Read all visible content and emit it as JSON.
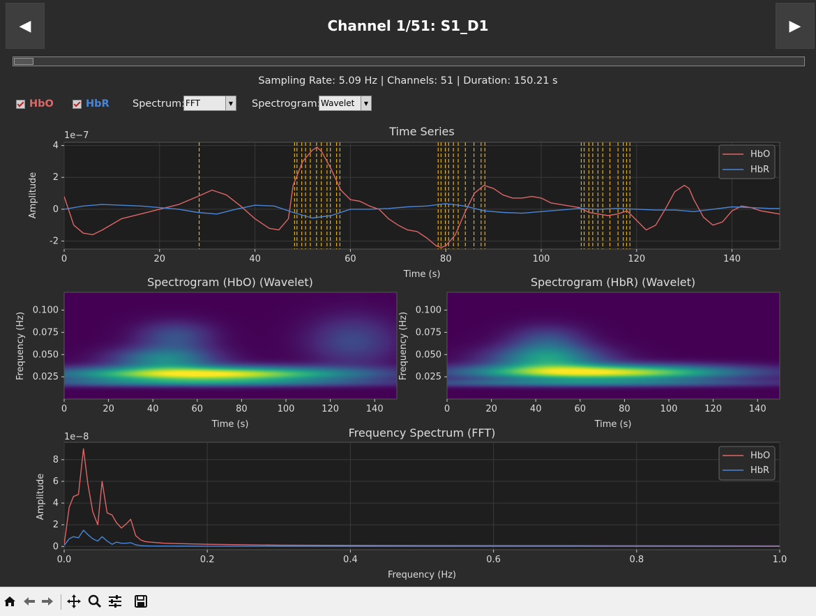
{
  "header": {
    "title": "Channel 1/51: S1_D1",
    "prev_label": "◀",
    "next_label": "▶",
    "info": "Sampling Rate: 5.09 Hz  |  Channels: 51  |  Duration: 150.21 s"
  },
  "controls": {
    "hbo_label": "HbO",
    "hbr_label": "HbR",
    "spectrum_label": "Spectrum:",
    "spectrum_value": "FFT",
    "spectrogram_label": "Spectrogram:",
    "spectrogram_value": "Wavelet"
  },
  "colors": {
    "hbo": "#e06666",
    "hbr": "#4a86d8",
    "marker": "#e0b020",
    "background": "#2b2b2b",
    "axes": "#1e1e1e"
  },
  "chart_data": [
    {
      "type": "line",
      "title": "Time Series",
      "xlabel": "Time (s)",
      "ylabel": "Amplitude",
      "y_offset_text": "1e−7",
      "xlim": [
        0,
        150
      ],
      "ylim": [
        -2.5,
        4.2
      ],
      "xticks": [
        0,
        20,
        40,
        60,
        80,
        100,
        120,
        140
      ],
      "yticks": [
        -2,
        0,
        2,
        4
      ],
      "legend_position": "top-right",
      "series": [
        {
          "name": "HbO",
          "x": [
            0,
            2,
            4,
            6,
            8,
            12,
            16,
            20,
            24,
            28,
            31,
            34,
            37,
            40,
            43,
            45,
            47,
            48,
            50,
            52,
            53,
            54,
            56,
            58,
            60,
            62,
            64,
            66,
            68,
            70,
            72,
            74,
            76,
            78,
            79,
            80,
            82,
            84,
            86,
            88,
            90,
            92,
            94,
            96,
            98,
            100,
            102,
            104,
            106,
            108,
            110,
            112,
            114,
            116,
            118,
            120,
            122,
            124,
            126,
            128,
            130,
            131,
            132,
            134,
            136,
            138,
            140,
            142,
            144,
            146,
            148,
            150
          ],
          "y": [
            0.8,
            -1.0,
            -1.5,
            -1.6,
            -1.3,
            -0.6,
            -0.3,
            0.0,
            0.3,
            0.8,
            1.2,
            0.9,
            0.2,
            -0.6,
            -1.2,
            -1.3,
            -0.6,
            1.5,
            3.0,
            3.7,
            3.9,
            3.6,
            2.5,
            1.2,
            0.6,
            0.5,
            0.2,
            0.0,
            -0.6,
            -1.0,
            -1.3,
            -1.4,
            -1.8,
            -2.3,
            -2.4,
            -2.3,
            -1.6,
            -0.2,
            1.0,
            1.5,
            1.3,
            0.9,
            0.7,
            0.7,
            0.8,
            0.7,
            0.4,
            0.3,
            0.2,
            0.1,
            -0.2,
            -0.3,
            -0.4,
            -0.3,
            -0.1,
            -0.7,
            -1.3,
            -1.0,
            0.0,
            1.1,
            1.5,
            1.3,
            0.6,
            -0.5,
            -1.0,
            -0.8,
            -0.1,
            0.2,
            0.1,
            -0.1,
            -0.2,
            -0.3
          ]
        },
        {
          "name": "HbR",
          "x": [
            0,
            4,
            8,
            12,
            16,
            20,
            24,
            28,
            32,
            36,
            40,
            44,
            48,
            52,
            56,
            60,
            64,
            68,
            72,
            76,
            80,
            84,
            88,
            92,
            96,
            100,
            104,
            108,
            112,
            116,
            120,
            124,
            128,
            132,
            136,
            140,
            144,
            148,
            150
          ],
          "y": [
            0.0,
            0.2,
            0.3,
            0.25,
            0.2,
            0.1,
            0.0,
            -0.2,
            -0.3,
            0.0,
            0.25,
            0.2,
            -0.2,
            -0.55,
            -0.4,
            0.0,
            0.0,
            0.05,
            0.15,
            0.2,
            0.35,
            0.2,
            -0.1,
            -0.2,
            -0.25,
            -0.15,
            -0.05,
            0.05,
            0.0,
            0.05,
            0.0,
            -0.05,
            -0.05,
            -0.15,
            0.0,
            0.15,
            0.1,
            0.05,
            0.05
          ]
        }
      ],
      "markers_x": [
        28.3,
        48.3,
        48.8,
        49.8,
        50.6,
        51.6,
        52.9,
        53.9,
        55.1,
        55.8,
        57.1,
        57.8,
        78.4,
        79.0,
        79.9,
        80.6,
        81.6,
        82.6,
        84.1,
        85.9,
        87.4,
        88.2,
        108.4,
        109.0,
        110.0,
        110.8,
        111.9,
        112.9,
        114.4,
        116.1,
        117.2,
        117.9,
        118.6
      ]
    },
    {
      "type": "heatmap",
      "title": "Spectrogram (HbO) (Wavelet)",
      "xlabel": "Time (s)",
      "ylabel": "Frequency (Hz)",
      "xlim": [
        0,
        150
      ],
      "ylim": [
        0.0,
        0.12
      ],
      "xticks": [
        0,
        20,
        40,
        60,
        80,
        100,
        120,
        140
      ],
      "yticks": [
        0.025,
        0.05,
        0.075,
        0.1
      ],
      "colormap": "viridis",
      "blobs": [
        {
          "t": 65,
          "f": 0.028,
          "st": 45,
          "sf": 0.006,
          "a": 1.0
        },
        {
          "t": 45,
          "f": 0.045,
          "st": 16,
          "sf": 0.009,
          "a": 0.45
        },
        {
          "t": 50,
          "f": 0.07,
          "st": 12,
          "sf": 0.012,
          "a": 0.25
        },
        {
          "t": 130,
          "f": 0.065,
          "st": 14,
          "sf": 0.02,
          "a": 0.22
        },
        {
          "t": 60,
          "f": 0.018,
          "st": 60,
          "sf": 0.003,
          "a": 0.3
        }
      ]
    },
    {
      "type": "heatmap",
      "title": "Spectrogram (HbR) (Wavelet)",
      "xlabel": "Time (s)",
      "ylabel": "Frequency (Hz)",
      "xlim": [
        0,
        150
      ],
      "ylim": [
        0.0,
        0.12
      ],
      "xticks": [
        0,
        20,
        40,
        60,
        80,
        100,
        120,
        140
      ],
      "yticks": [
        0.025,
        0.05,
        0.075,
        0.1
      ],
      "colormap": "viridis",
      "blobs": [
        {
          "t": 70,
          "f": 0.03,
          "st": 42,
          "sf": 0.006,
          "a": 0.95
        },
        {
          "t": 45,
          "f": 0.045,
          "st": 18,
          "sf": 0.01,
          "a": 0.5
        },
        {
          "t": 45,
          "f": 0.065,
          "st": 12,
          "sf": 0.012,
          "a": 0.25
        },
        {
          "t": 60,
          "f": 0.018,
          "st": 60,
          "sf": 0.003,
          "a": 0.35
        }
      ]
    },
    {
      "type": "line",
      "title": "Frequency Spectrum (FFT)",
      "xlabel": "Frequency (Hz)",
      "ylabel": "Amplitude",
      "y_offset_text": "1e−8",
      "xlim": [
        0,
        1.0
      ],
      "ylim": [
        -0.3,
        9.6
      ],
      "xticks": [
        0.0,
        0.2,
        0.4,
        0.6,
        0.8,
        1.0
      ],
      "yticks": [
        0,
        2,
        4,
        6,
        8
      ],
      "legend_position": "top-right",
      "series": [
        {
          "name": "HbO",
          "x": [
            0,
            0.007,
            0.013,
            0.02,
            0.027,
            0.033,
            0.04,
            0.047,
            0.053,
            0.06,
            0.067,
            0.073,
            0.08,
            0.087,
            0.093,
            0.1,
            0.107,
            0.113,
            0.12,
            0.14,
            0.2,
            0.3,
            0.5,
            0.7,
            1.0
          ],
          "y": [
            0.2,
            3.6,
            4.6,
            4.8,
            9.0,
            5.8,
            3.2,
            2.0,
            6.0,
            3.1,
            2.9,
            2.2,
            1.7,
            2.1,
            2.5,
            1.0,
            0.6,
            0.45,
            0.4,
            0.3,
            0.2,
            0.12,
            0.08,
            0.07,
            0.05
          ]
        },
        {
          "name": "HbR",
          "x": [
            0,
            0.007,
            0.013,
            0.02,
            0.027,
            0.033,
            0.04,
            0.047,
            0.053,
            0.06,
            0.067,
            0.073,
            0.08,
            0.087,
            0.093,
            0.1,
            0.107,
            0.113,
            0.12,
            0.14,
            0.2,
            0.3,
            0.5,
            0.7,
            1.0
          ],
          "y": [
            0.1,
            0.7,
            0.9,
            0.8,
            1.5,
            1.1,
            0.7,
            0.5,
            0.9,
            0.5,
            0.2,
            0.4,
            0.3,
            0.3,
            0.35,
            0.15,
            0.08,
            0.06,
            0.05,
            0.04,
            0.03,
            0.02,
            0.02,
            0.02,
            0.01
          ]
        }
      ]
    }
  ]
}
